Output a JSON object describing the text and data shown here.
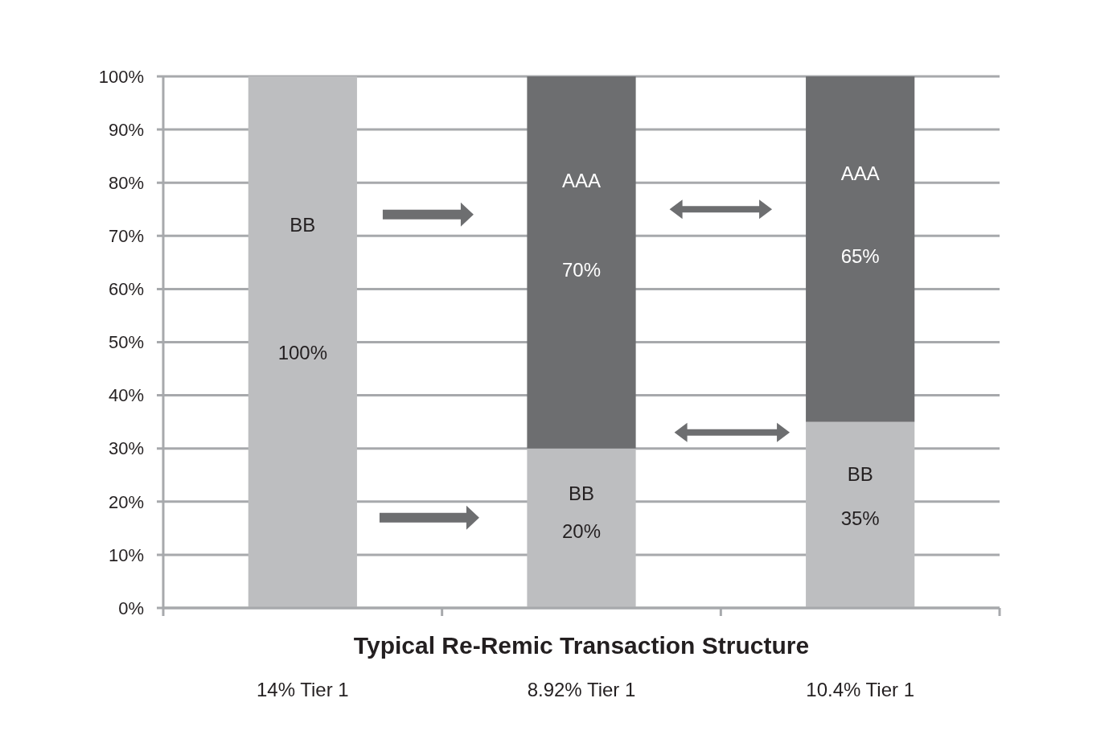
{
  "chart_data": {
    "type": "bar",
    "stacked": true,
    "xlabel": "Typical Re-Remic Transaction Structure",
    "categories": [
      "14% Tier 1",
      "8.92% Tier 1",
      "10.4% Tier 1"
    ],
    "series": [
      {
        "color": "#bdbec0",
        "values": [
          100,
          30,
          35
        ]
      },
      {
        "color": "#6d6e70",
        "values": [
          0,
          70,
          65
        ]
      }
    ],
    "ylim": [
      0,
      100
    ],
    "yticks": [
      {
        "value": 0,
        "label": "0%"
      },
      {
        "value": 10,
        "label": "10%"
      },
      {
        "value": 20,
        "label": "20%"
      },
      {
        "value": 30,
        "label": "30%"
      },
      {
        "value": 40,
        "label": "40%"
      },
      {
        "value": 50,
        "label": "50%"
      },
      {
        "value": 60,
        "label": "60%"
      },
      {
        "value": 70,
        "label": "70%"
      },
      {
        "value": 80,
        "label": "80%"
      },
      {
        "value": 90,
        "label": "90%"
      },
      {
        "value": 100,
        "label": "100%"
      }
    ],
    "grid": "y",
    "annotations": [
      "BB",
      "100%",
      "AAA",
      "70%",
      "BB",
      "20%",
      "AAA",
      "65%",
      "BB",
      "35%"
    ]
  }
}
